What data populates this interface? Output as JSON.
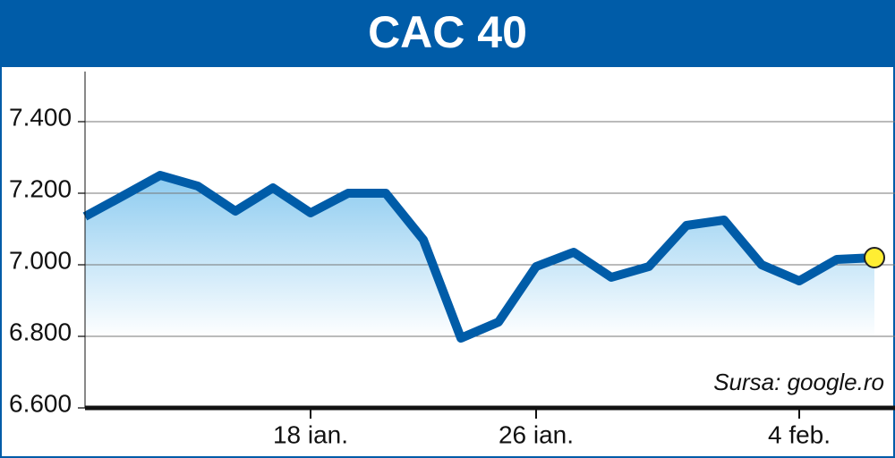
{
  "chart_data": {
    "type": "line",
    "title": "CAC 40",
    "source": "Sursa: google.ro",
    "categories": [
      null,
      null,
      null,
      null,
      null,
      null,
      "18 ian.",
      null,
      null,
      null,
      null,
      null,
      "26 ian.",
      null,
      null,
      null,
      null,
      null,
      null,
      "4 feb.",
      null,
      null
    ],
    "series": [
      {
        "color": "#005ca8",
        "values": [
          7135,
          7192,
          7250,
          7220,
          7150,
          7215,
          7145,
          7200,
          7200,
          7070,
          6795,
          6840,
          6995,
          7035,
          6965,
          6995,
          7110,
          7125,
          7000,
          6955,
          7015,
          7020
        ]
      }
    ],
    "ylim": [
      6600,
      7545
    ],
    "yticks": [
      {
        "value": 6600,
        "label": "6.600"
      },
      {
        "value": 6800,
        "label": "6.800"
      },
      {
        "value": 7000,
        "label": "7.000"
      },
      {
        "value": 7200,
        "label": "7.200"
      },
      {
        "value": 7400,
        "label": "7.400"
      }
    ],
    "grid": true
  }
}
